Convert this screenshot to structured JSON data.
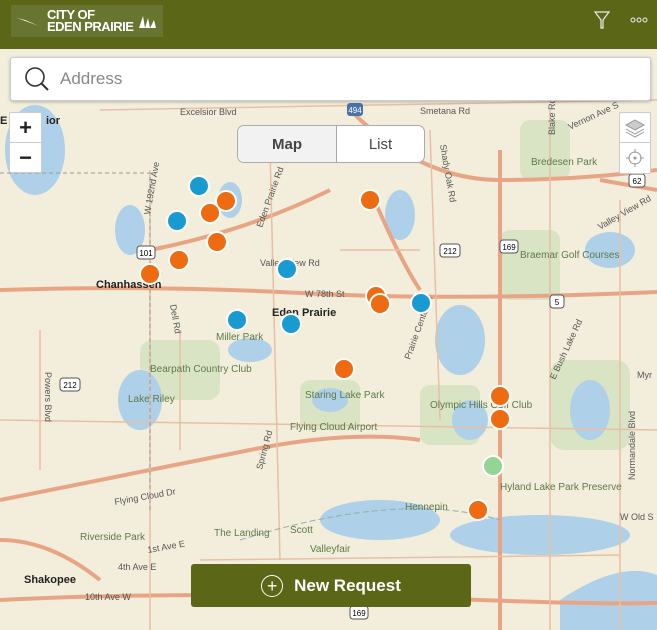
{
  "header": {
    "logo_text_line1": "CITY OF",
    "logo_text_line2": "EDEN PRAIRIE",
    "filter_icon": "filter-icon",
    "more_icon": "more-icon"
  },
  "search": {
    "placeholder": "Address",
    "value": ""
  },
  "zoom": {
    "in": "+",
    "out": "−"
  },
  "view_toggle": {
    "options": [
      "Map",
      "List"
    ],
    "selected": "Map"
  },
  "new_request": {
    "label": "New Request"
  },
  "map": {
    "colors": {
      "open": "#ee6b12",
      "in_progress": "#1a9bd0",
      "closed": "#94d494",
      "header": "#5b6616"
    },
    "cities": [
      "Chanhassen",
      "Eden Prairie",
      "Shakopee",
      "E",
      "ior"
    ],
    "places": [
      "Bredesen Park",
      "Braemar Golf Courses",
      "Bearpath Country Club",
      "Lake Riley",
      "Staring Lake Park",
      "Flying Cloud Airport",
      "Olympic Hills Golf Club",
      "Hyland Lake Park Preserve",
      "Miller Park",
      "Riverside Park",
      "The Landing",
      "Valleyfair",
      "Scott",
      "Hennepin"
    ],
    "roads": [
      "Excelsior Blvd",
      "Smetana Rd",
      "Vernon Ave S",
      "Valley View Rd",
      "W 78th St",
      "Flying Cloud Dr",
      "Prairie Center Dr",
      "Shady Oak Rd",
      "Spring Rd",
      "Dell Rd",
      "Powers Blvd",
      "1st Ave E",
      "4th Ave E",
      "10th Ave W",
      "E Bush Lake Rd",
      "Normandale Blvd",
      "W Old S",
      "Blake Rd",
      "Eden Prairie Rd",
      "Valley View Rd",
      "W 192nd Ave",
      "Myr"
    ],
    "shields": [
      "494",
      "212",
      "212",
      "169",
      "169",
      "101",
      "5",
      "62",
      "169"
    ],
    "markers": [
      {
        "status": "in_progress"
      },
      {
        "status": "open"
      },
      {
        "status": "open"
      },
      {
        "status": "in_progress"
      },
      {
        "status": "open"
      },
      {
        "status": "open"
      },
      {
        "status": "open"
      },
      {
        "status": "open"
      },
      {
        "status": "in_progress"
      },
      {
        "status": "in_progress"
      },
      {
        "status": "in_progress"
      },
      {
        "status": "open"
      },
      {
        "status": "open"
      },
      {
        "status": "in_progress"
      },
      {
        "status": "open"
      },
      {
        "status": "open"
      },
      {
        "status": "open"
      },
      {
        "status": "closed"
      },
      {
        "status": "open"
      }
    ]
  }
}
